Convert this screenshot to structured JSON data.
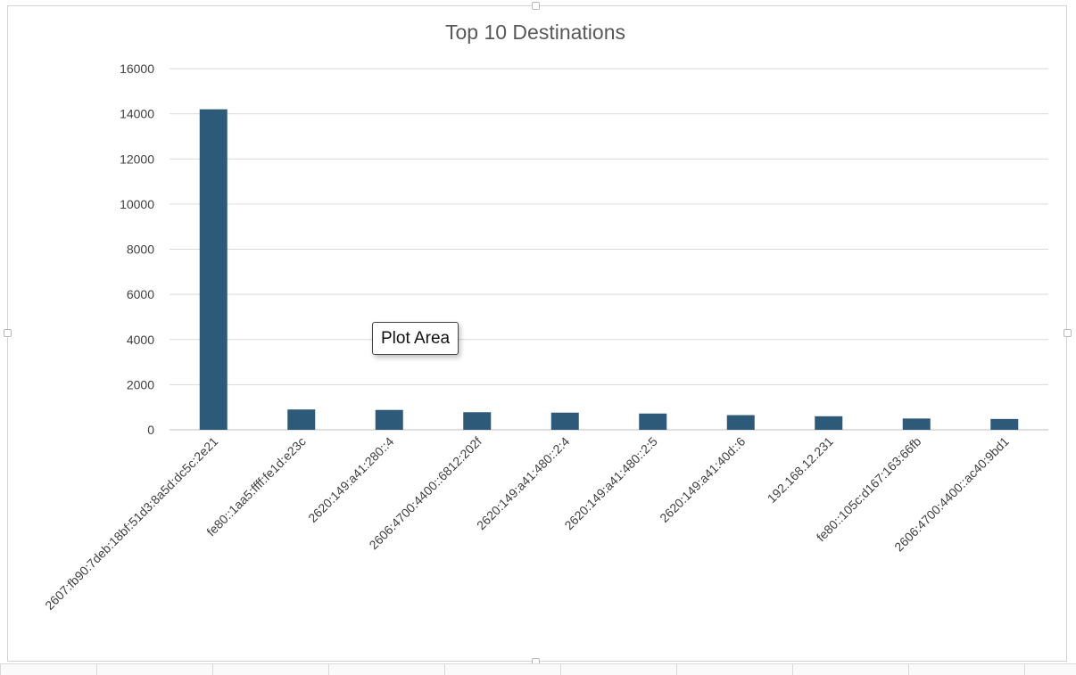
{
  "colors": {
    "bar": "#2e5a7a"
  },
  "tooltip": {
    "label": "Plot Area"
  },
  "chart_data": {
    "type": "bar",
    "title": "Top 10 Destinations",
    "xlabel": "",
    "ylabel": "",
    "ylim": [
      0,
      16000
    ],
    "yticks": [
      "0",
      "2000",
      "4000",
      "6000",
      "8000",
      "10000",
      "12000",
      "14000",
      "16000"
    ],
    "grid": true,
    "legend": "none",
    "categories": [
      "2607:fb90:7deb:18bf:51d3:8a5d:dc5c:2e21",
      "fe80::1aa5:ffff:fe1d:e23c",
      "2620:149:a41:280::4",
      "2606:4700:4400::6812:202f",
      "2620:149:a41:480::2:4",
      "2620:149:a41:480::2:5",
      "2620:149:a41:40d::6",
      "192.168.12.231",
      "fe80::105c:d167:163:66fb",
      "2606:4700:4400::ac40:9bd1"
    ],
    "values": [
      14200,
      900,
      880,
      780,
      760,
      720,
      650,
      600,
      500,
      480
    ]
  }
}
